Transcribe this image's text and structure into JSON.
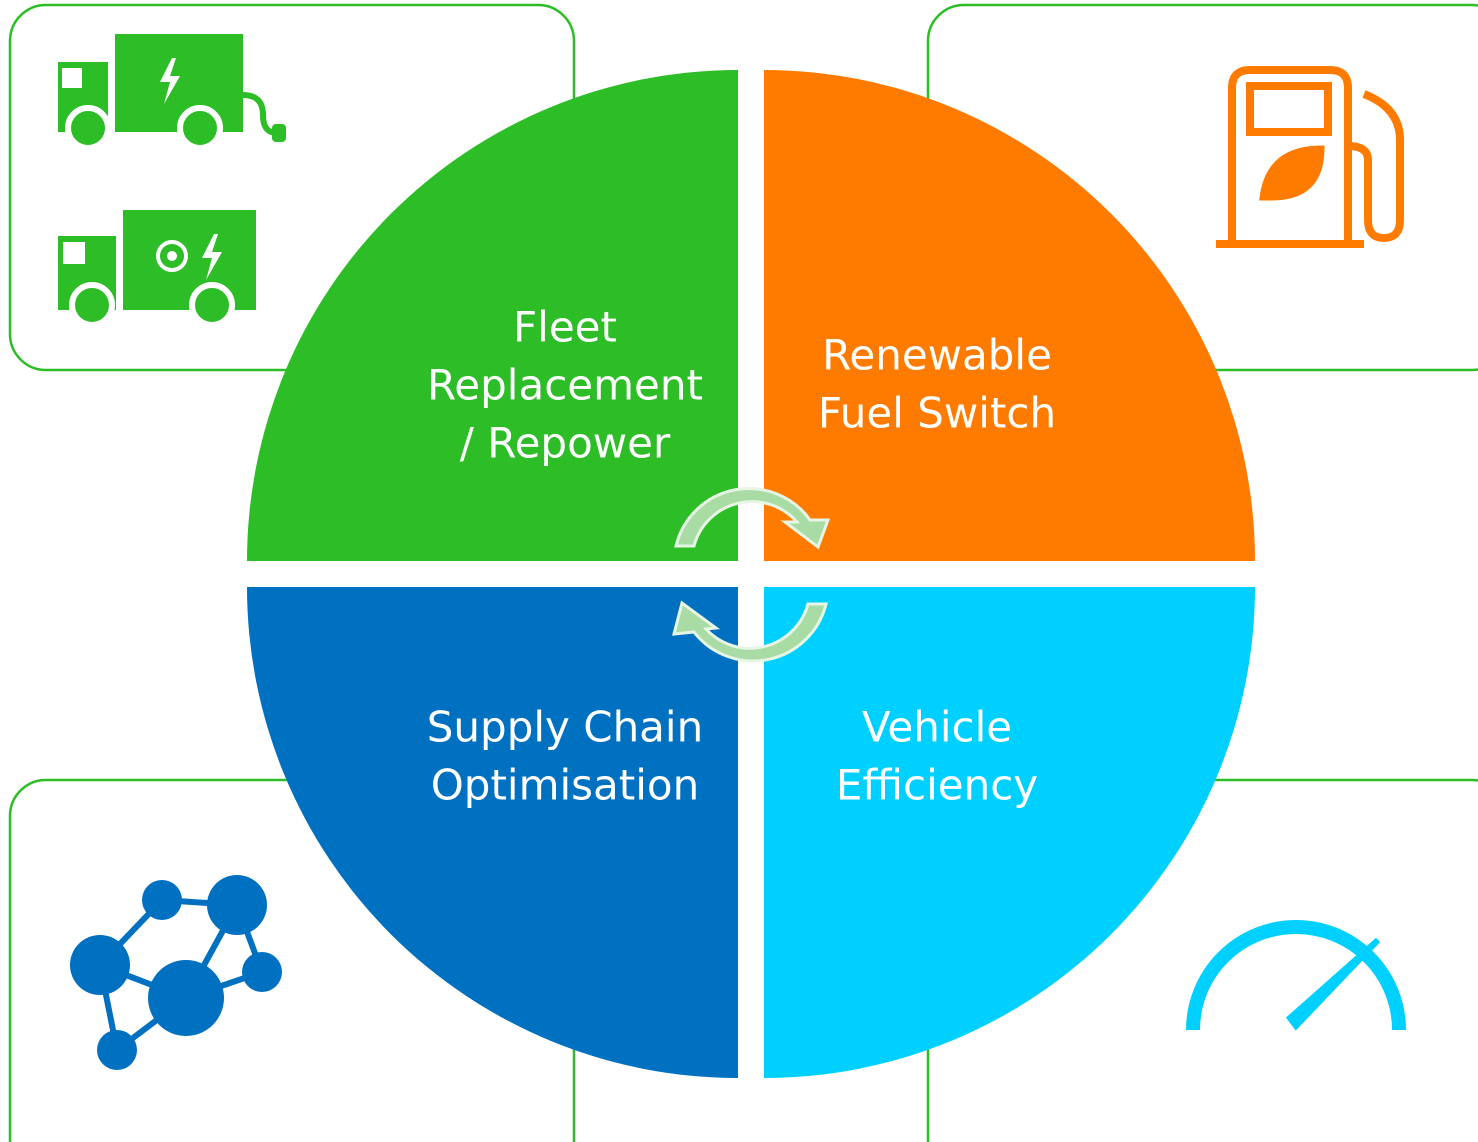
{
  "quadrants": [
    {
      "lines": [
        "Fleet",
        "Replacement",
        "/ Repower"
      ]
    },
    {
      "lines": [
        "Renewable",
        "Fuel Switch"
      ]
    },
    {
      "lines": [
        "Supply Chain",
        "Optimisation"
      ]
    },
    {
      "lines": [
        "Vehicle",
        "Efficiency"
      ]
    }
  ]
}
